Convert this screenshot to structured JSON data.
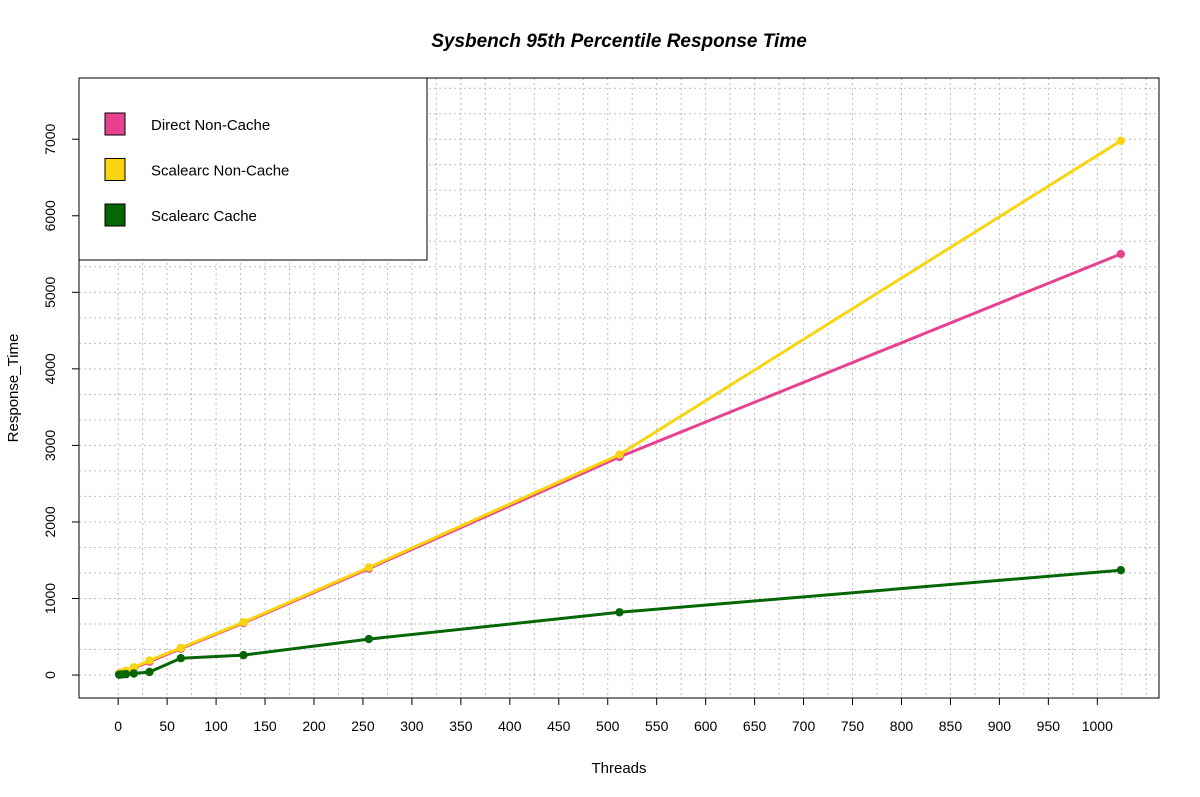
{
  "chart_data": {
    "type": "line",
    "title": "Sysbench 95th Percentile Response Time",
    "xlabel": "Threads",
    "ylabel": "Response_Time",
    "xlim": [
      -40,
      1063
    ],
    "ylim": [
      -300,
      7800
    ],
    "xticks": [
      0,
      50,
      100,
      150,
      200,
      250,
      300,
      350,
      400,
      450,
      500,
      550,
      600,
      650,
      700,
      750,
      800,
      850,
      900,
      950,
      1000
    ],
    "yticks": [
      0,
      1000,
      2000,
      3000,
      4000,
      5000,
      6000,
      7000
    ],
    "grid": true,
    "legend_position": "top-left",
    "x": [
      1,
      2,
      4,
      8,
      16,
      32,
      64,
      128,
      256,
      512,
      1024
    ],
    "series": [
      {
        "name": "Direct Non-Cache",
        "color": "#e8418f",
        "values": [
          12,
          15,
          25,
          45,
          90,
          175,
          345,
          680,
          1390,
          2850,
          5500
        ]
      },
      {
        "name": "Scalearc Non-Cache",
        "color": "#fad410",
        "values": [
          20,
          25,
          35,
          55,
          100,
          190,
          355,
          690,
          1405,
          2880,
          6980
        ]
      },
      {
        "name": "Scalearc Cache",
        "color": "#066606",
        "values": [
          5,
          6,
          8,
          12,
          20,
          40,
          220,
          260,
          470,
          820,
          1370
        ]
      }
    ]
  }
}
